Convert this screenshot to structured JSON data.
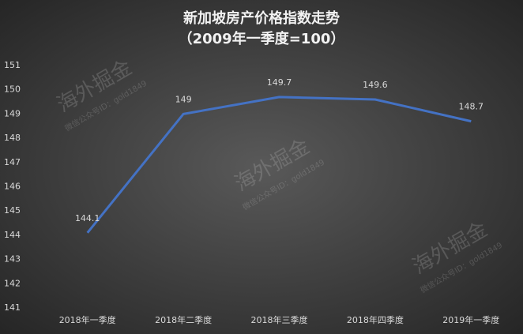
{
  "chart_data": {
    "type": "line",
    "title": "新加坡房产价格指数走势",
    "subtitle": "（2009年一季度=100）",
    "categories": [
      "2018年一季度",
      "2018年二季度",
      "2018年三季度",
      "2018年四季度",
      "2019年一季度"
    ],
    "values": [
      144.1,
      149,
      149.7,
      149.6,
      148.7
    ],
    "color": "#4472c4",
    "ylim": [
      141,
      151
    ],
    "yticks": [
      141,
      142,
      143,
      144,
      145,
      146,
      147,
      148,
      149,
      150,
      151
    ],
    "watermarks": [
      {
        "text": "海外掘金",
        "subtext": "微信公众号ID：gold1849"
      },
      {
        "text": "海外掘金",
        "subtext": "微信公众号ID：gold1849"
      },
      {
        "text": "海外掘金",
        "subtext": "微信公众号ID：gold1849"
      }
    ]
  }
}
